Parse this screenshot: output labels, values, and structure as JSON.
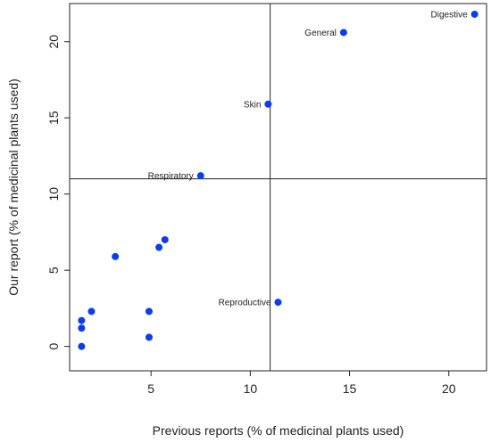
{
  "chart_data": {
    "type": "scatter",
    "xlabel": "Previous reports (% of medicinal plants used)",
    "ylabel": "Our report (% of medicinal plants used)",
    "xlim": [
      0.9,
      21.9
    ],
    "ylim": [
      -1.6,
      22.5
    ],
    "xticks": [
      5,
      10,
      15,
      20
    ],
    "yticks": [
      0,
      5,
      10,
      15,
      20
    ],
    "grid": false,
    "reference_lines": {
      "x": 11.0,
      "y": 11.0
    },
    "point_color": "#0a3cf0",
    "points": [
      {
        "x": 21.3,
        "y": 21.8,
        "label": "Digestive"
      },
      {
        "x": 14.7,
        "y": 20.6,
        "label": "General"
      },
      {
        "x": 10.9,
        "y": 15.9,
        "label": "Skin"
      },
      {
        "x": 7.5,
        "y": 11.2,
        "label": "Respiratory"
      },
      {
        "x": 11.4,
        "y": 2.9,
        "label": "Reproductive"
      },
      {
        "x": 5.7,
        "y": 7.0,
        "label": ""
      },
      {
        "x": 5.4,
        "y": 6.5,
        "label": ""
      },
      {
        "x": 3.2,
        "y": 5.9,
        "label": ""
      },
      {
        "x": 2.0,
        "y": 2.3,
        "label": ""
      },
      {
        "x": 4.9,
        "y": 2.3,
        "label": ""
      },
      {
        "x": 1.5,
        "y": 1.7,
        "label": ""
      },
      {
        "x": 1.5,
        "y": 1.2,
        "label": ""
      },
      {
        "x": 4.9,
        "y": 0.6,
        "label": ""
      },
      {
        "x": 1.5,
        "y": 0.0,
        "label": ""
      }
    ]
  }
}
